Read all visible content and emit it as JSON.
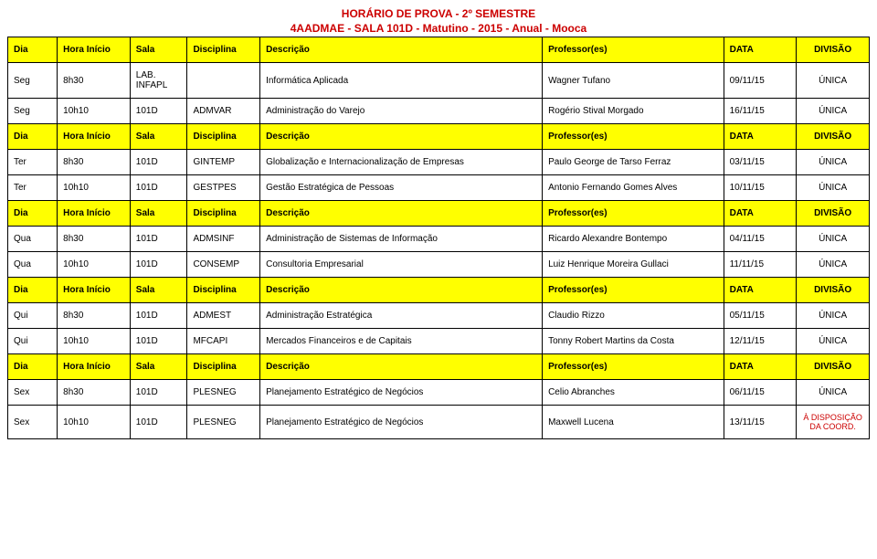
{
  "titles": {
    "line1": "HORÁRIO DE PROVA - 2º SEMESTRE",
    "line2": "4AADMAE - SALA 101D - Matutino - 2015 - Anual - Mooca"
  },
  "header": {
    "dia": "Dia",
    "hora": "Hora Início",
    "sala": "Sala",
    "disc": "Disciplina",
    "desc": "Descrição",
    "prof": "Professor(es)",
    "data": "DATA",
    "divisao": "DIVISÃO"
  },
  "unica": "ÚNICA",
  "adisp": "À DISPOSIÇÃO DA COORD.",
  "rows": [
    {
      "dia": "Seg",
      "hora": "8h30",
      "sala": "LAB. INFAPL",
      "disc": "",
      "desc": "Informática Aplicada",
      "prof": "Wagner Tufano",
      "data": "09/11/15",
      "divisao": "ÚNICA"
    },
    {
      "dia": "Seg",
      "hora": "10h10",
      "sala": "101D",
      "disc": "ADMVAR",
      "desc": "Administração do Varejo",
      "prof": "Rogério Stival Morgado",
      "data": "16/11/15",
      "divisao": "ÚNICA"
    },
    {
      "dia": "Ter",
      "hora": "8h30",
      "sala": "101D",
      "disc": "GINTEMP",
      "desc": "Globalização e Internacionalização de Empresas",
      "prof": "Paulo George de Tarso Ferraz",
      "data": "03/11/15",
      "divisao": "ÚNICA"
    },
    {
      "dia": "Ter",
      "hora": "10h10",
      "sala": "101D",
      "disc": "GESTPES",
      "desc": "Gestão Estratégica de Pessoas",
      "prof": "Antonio Fernando Gomes Alves",
      "data": "10/11/15",
      "divisao": "ÚNICA"
    },
    {
      "dia": "Qua",
      "hora": "8h30",
      "sala": "101D",
      "disc": "ADMSINF",
      "desc": "Administração de Sistemas de Informação",
      "prof": "Ricardo Alexandre Bontempo",
      "data": "04/11/15",
      "divisao": "ÚNICA"
    },
    {
      "dia": "Qua",
      "hora": "10h10",
      "sala": "101D",
      "disc": "CONSEMP",
      "desc": "Consultoria Empresarial",
      "prof": "Luiz Henrique Moreira Gullaci",
      "data": "11/11/15",
      "divisao": "ÚNICA"
    },
    {
      "dia": "Qui",
      "hora": "8h30",
      "sala": "101D",
      "disc": "ADMEST",
      "desc": "Administração Estratégica",
      "prof": "Claudio Rizzo",
      "data": "05/11/15",
      "divisao": "ÚNICA"
    },
    {
      "dia": "Qui",
      "hora": "10h10",
      "sala": "101D",
      "disc": "MFCAPI",
      "desc": "Mercados Financeiros e de Capitais",
      "prof": "Tonny Robert Martins da Costa",
      "data": "12/11/15",
      "divisao": "ÚNICA"
    },
    {
      "dia": "Sex",
      "hora": "8h30",
      "sala": "101D",
      "disc": "PLESNEG",
      "desc": "Planejamento Estratégico de Negócios",
      "prof": "Celio Abranches",
      "data": "06/11/15",
      "divisao": "ÚNICA"
    },
    {
      "dia": "Sex",
      "hora": "10h10",
      "sala": "101D",
      "disc": "PLESNEG",
      "desc": "Planejamento Estratégico de Negócios",
      "prof": "Maxwell Lucena",
      "data": "13/11/15",
      "divisao": "À DISPOSIÇÃO DA COORD.",
      "divred": true
    }
  ],
  "groups": [
    [
      0,
      1
    ],
    [
      2,
      3
    ],
    [
      4,
      5
    ],
    [
      6,
      7
    ],
    [
      8,
      9
    ]
  ]
}
